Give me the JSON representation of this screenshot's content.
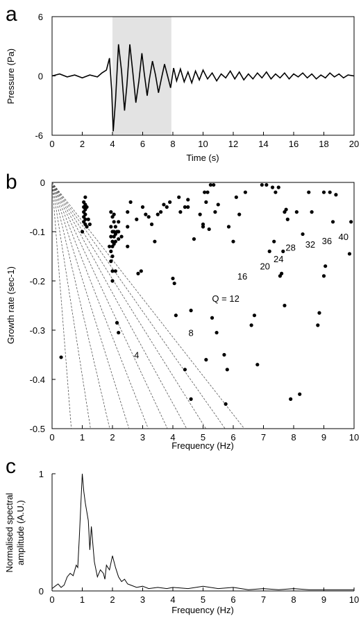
{
  "panels": [
    {
      "letter": "a",
      "xlabel": "Time (s)",
      "ylabel": "Pressure (Pa)",
      "xticks": [
        "0",
        "2",
        "4",
        "6",
        "8",
        "10",
        "12",
        "14",
        "16",
        "18",
        "20"
      ],
      "yticks": [
        {
          "v": 6,
          "label": "6"
        },
        {
          "v": 0,
          "label": "0"
        },
        {
          "v": -6,
          "label": "-6"
        }
      ]
    },
    {
      "letter": "b",
      "xlabel": "Frequency (Hz)",
      "ylabel": "Growth rate (sec-1)",
      "xticks": [
        "0",
        "1",
        "2",
        "3",
        "4",
        "5",
        "6",
        "7",
        "8",
        "9",
        "10"
      ],
      "yticks": [
        {
          "v": 0,
          "label": "0"
        },
        {
          "v": -0.1,
          "label": "-0.1"
        },
        {
          "v": -0.2,
          "label": "-0.2"
        },
        {
          "v": -0.3,
          "label": "-0.3"
        },
        {
          "v": -0.4,
          "label": "-0.4"
        },
        {
          "v": -0.5,
          "label": "-0.5"
        }
      ]
    },
    {
      "letter": "c",
      "xlabel": "Frequency (Hz)",
      "ylabel_line1": "Normalised spectral",
      "ylabel_line2": "amplitude (A.U.)",
      "xticks": [
        "0",
        "1",
        "2",
        "3",
        "4",
        "5",
        "6",
        "7",
        "8",
        "9",
        "10"
      ],
      "yticks": [
        {
          "v": 1,
          "label": "1"
        },
        {
          "v": 0,
          "label": "0"
        }
      ]
    }
  ],
  "chart_data": [
    {
      "type": "line",
      "panel": "a",
      "xlim": [
        0,
        20
      ],
      "ylim": [
        -6,
        6
      ],
      "shaded_interval": [
        4,
        7.9
      ],
      "x": [
        0,
        0.5,
        1,
        1.5,
        2,
        2.5,
        3,
        3.3,
        3.6,
        3.8,
        3.95,
        4.05,
        4.2,
        4.4,
        4.6,
        4.8,
        4.95,
        5.15,
        5.35,
        5.55,
        5.75,
        5.95,
        6.1,
        6.3,
        6.45,
        6.65,
        6.85,
        7.05,
        7.25,
        7.45,
        7.65,
        7.85,
        8.05,
        8.25,
        8.5,
        8.75,
        9,
        9.25,
        9.5,
        9.75,
        10,
        10.3,
        10.6,
        10.9,
        11.2,
        11.5,
        11.8,
        12.1,
        12.4,
        12.7,
        13,
        13.3,
        13.6,
        13.9,
        14.2,
        14.5,
        14.8,
        15.1,
        15.4,
        15.7,
        16,
        16.3,
        16.6,
        16.9,
        17.2,
        17.5,
        17.8,
        18.1,
        18.4,
        18.7,
        19,
        19.3,
        19.6,
        20
      ],
      "y": [
        0,
        0.2,
        -0.1,
        0.1,
        -0.2,
        0.1,
        -0.1,
        0.3,
        0.6,
        1.8,
        -1.5,
        -5.6,
        -2.5,
        3.2,
        0.5,
        -3.5,
        -1.0,
        3.2,
        0.3,
        -2.7,
        -0.5,
        2.3,
        0.3,
        -2.0,
        -0.3,
        1.5,
        0.1,
        -1.7,
        -0.2,
        1.2,
        0.0,
        -1.2,
        0.8,
        -0.5,
        0.7,
        -0.6,
        0.4,
        -0.7,
        0.5,
        -0.4,
        0.6,
        -0.3,
        0.3,
        -0.5,
        0.2,
        -0.2,
        0.5,
        -0.3,
        0.4,
        -0.4,
        0.2,
        -0.3,
        0.3,
        -0.2,
        0.4,
        -0.3,
        0.2,
        -0.2,
        0.3,
        -0.3,
        0.2,
        -0.1,
        0.3,
        -0.2,
        0.2,
        -0.3,
        0.1,
        -0.2,
        0.3,
        -0.1,
        0.2,
        -0.2,
        0.1,
        0.0
      ]
    },
    {
      "type": "scatter",
      "panel": "b",
      "xlim": [
        0,
        10
      ],
      "ylim": [
        -0.5,
        0
      ],
      "q_lines": [
        {
          "q": 4,
          "label": "4",
          "label_at": [
            2.8,
            -0.35
          ]
        },
        {
          "q": 8,
          "label": "8",
          "label_at": [
            4.6,
            -0.305
          ]
        },
        {
          "q": 12,
          "label": "Q = 12",
          "label_at": [
            5.75,
            -0.235
          ]
        },
        {
          "q": 16,
          "label": "16",
          "label_at": [
            6.3,
            -0.19
          ]
        },
        {
          "q": 20,
          "label": "20",
          "label_at": [
            7.05,
            -0.17
          ]
        },
        {
          "q": 24,
          "label": "24",
          "label_at": [
            7.5,
            -0.155
          ]
        },
        {
          "q": 28,
          "label": "28",
          "label_at": [
            7.9,
            -0.132
          ]
        },
        {
          "q": 32,
          "label": "32",
          "label_at": [
            8.55,
            -0.125
          ]
        },
        {
          "q": 36,
          "label": "36",
          "label_at": [
            9.1,
            -0.118
          ]
        },
        {
          "q": 40,
          "label": "40",
          "label_at": [
            9.65,
            -0.11
          ]
        }
      ],
      "points": [
        [
          0.3,
          -0.355
        ],
        [
          1.0,
          -0.1
        ],
        [
          1.05,
          -0.04
        ],
        [
          1.05,
          -0.05
        ],
        [
          1.05,
          -0.06
        ],
        [
          1.05,
          -0.07
        ],
        [
          1.05,
          -0.08
        ],
        [
          1.1,
          -0.03
        ],
        [
          1.1,
          -0.045
        ],
        [
          1.1,
          -0.055
        ],
        [
          1.1,
          -0.065
        ],
        [
          1.1,
          -0.075
        ],
        [
          1.1,
          -0.085
        ],
        [
          1.15,
          -0.09
        ],
        [
          1.15,
          -0.05
        ],
        [
          1.2,
          -0.075
        ],
        [
          1.25,
          -0.085
        ],
        [
          1.9,
          -0.13
        ],
        [
          1.95,
          -0.06
        ],
        [
          1.95,
          -0.09
        ],
        [
          1.95,
          -0.11
        ],
        [
          1.95,
          -0.14
        ],
        [
          1.95,
          -0.16
        ],
        [
          2.0,
          -0.07
        ],
        [
          2.0,
          -0.1
        ],
        [
          2.0,
          -0.12
        ],
        [
          2.0,
          -0.13
        ],
        [
          2.0,
          -0.15
        ],
        [
          2.0,
          -0.18
        ],
        [
          2.0,
          -0.2
        ],
        [
          2.05,
          -0.08
        ],
        [
          2.05,
          -0.1
        ],
        [
          2.05,
          -0.11
        ],
        [
          2.05,
          -0.125
        ],
        [
          2.1,
          -0.09
        ],
        [
          2.1,
          -0.105
        ],
        [
          2.1,
          -0.12
        ],
        [
          2.15,
          -0.1
        ],
        [
          2.2,
          -0.115
        ],
        [
          2.2,
          -0.08
        ],
        [
          2.1,
          -0.18
        ],
        [
          2.2,
          -0.1
        ],
        [
          2.05,
          -0.065
        ],
        [
          2.15,
          -0.285
        ],
        [
          2.2,
          -0.305
        ],
        [
          2.3,
          -0.11
        ],
        [
          2.5,
          -0.13
        ],
        [
          2.5,
          -0.09
        ],
        [
          2.5,
          -0.06
        ],
        [
          2.6,
          -0.04
        ],
        [
          2.8,
          -0.075
        ],
        [
          2.85,
          -0.185
        ],
        [
          2.95,
          -0.18
        ],
        [
          3.0,
          -0.05
        ],
        [
          3.3,
          -0.085
        ],
        [
          3.5,
          -0.065
        ],
        [
          3.1,
          -0.065
        ],
        [
          3.2,
          -0.07
        ],
        [
          3.4,
          -0.12
        ],
        [
          3.6,
          -0.06
        ],
        [
          3.7,
          -0.045
        ],
        [
          3.9,
          -0.04
        ],
        [
          3.8,
          -0.05
        ],
        [
          4.0,
          -0.195
        ],
        [
          4.05,
          -0.205
        ],
        [
          4.2,
          -0.03
        ],
        [
          4.4,
          -0.38
        ],
        [
          4.5,
          -0.035
        ],
        [
          4.6,
          -0.26
        ],
        [
          4.5,
          -0.05
        ],
        [
          4.1,
          -0.27
        ],
        [
          4.4,
          -0.05
        ],
        [
          4.25,
          -0.06
        ],
        [
          4.6,
          -0.44
        ],
        [
          4.7,
          -0.115
        ],
        [
          4.9,
          -0.065
        ],
        [
          5.0,
          -0.085
        ],
        [
          5.0,
          -0.09
        ],
        [
          5.05,
          -0.02
        ],
        [
          5.1,
          -0.04
        ],
        [
          5.15,
          -0.02
        ],
        [
          5.25,
          -0.005
        ],
        [
          5.35,
          -0.005
        ],
        [
          5.45,
          -0.305
        ],
        [
          5.3,
          -0.275
        ],
        [
          5.1,
          -0.36
        ],
        [
          5.2,
          -0.095
        ],
        [
          5.4,
          -0.06
        ],
        [
          5.5,
          -0.045
        ],
        [
          5.7,
          -0.35
        ],
        [
          5.75,
          -0.45
        ],
        [
          5.8,
          -0.38
        ],
        [
          5.85,
          -0.09
        ],
        [
          6.0,
          -0.12
        ],
        [
          6.1,
          -0.03
        ],
        [
          6.2,
          -0.065
        ],
        [
          6.4,
          -0.02
        ],
        [
          6.7,
          -0.27
        ],
        [
          6.8,
          -0.37
        ],
        [
          6.6,
          -0.29
        ],
        [
          6.95,
          -0.005
        ],
        [
          7.1,
          -0.005
        ],
        [
          7.2,
          -0.14
        ],
        [
          7.3,
          -0.01
        ],
        [
          7.35,
          -0.12
        ],
        [
          7.4,
          -0.02
        ],
        [
          7.5,
          -0.01
        ],
        [
          7.55,
          -0.19
        ],
        [
          7.6,
          -0.185
        ],
        [
          7.65,
          -0.14
        ],
        [
          7.7,
          -0.25
        ],
        [
          7.75,
          -0.055
        ],
        [
          7.8,
          -0.075
        ],
        [
          7.7,
          -0.06
        ],
        [
          7.9,
          -0.44
        ],
        [
          8.1,
          -0.06
        ],
        [
          8.2,
          -0.43
        ],
        [
          8.3,
          -0.105
        ],
        [
          8.5,
          -0.02
        ],
        [
          8.6,
          -0.06
        ],
        [
          8.8,
          -0.29
        ],
        [
          8.85,
          -0.265
        ],
        [
          9.0,
          -0.19
        ],
        [
          9.05,
          -0.17
        ],
        [
          9.0,
          -0.02
        ],
        [
          9.2,
          -0.02
        ],
        [
          9.3,
          -0.08
        ],
        [
          9.4,
          -0.025
        ],
        [
          9.85,
          -0.145
        ],
        [
          9.9,
          -0.08
        ]
      ]
    },
    {
      "type": "line",
      "panel": "c",
      "xlim": [
        0,
        10
      ],
      "ylim": [
        0,
        1
      ],
      "x": [
        0,
        0.1,
        0.2,
        0.3,
        0.4,
        0.5,
        0.6,
        0.7,
        0.8,
        0.85,
        0.9,
        1.0,
        1.05,
        1.1,
        1.2,
        1.25,
        1.3,
        1.4,
        1.5,
        1.6,
        1.7,
        1.75,
        1.8,
        1.9,
        2.0,
        2.1,
        2.2,
        2.3,
        2.4,
        2.5,
        2.6,
        2.8,
        3.0,
        3.2,
        3.5,
        3.8,
        4.0,
        4.5,
        5.0,
        5.5,
        6.0,
        6.5,
        7.0,
        7.5,
        8.0,
        8.5,
        9.0,
        9.5,
        10.0
      ],
      "y": [
        0.02,
        0.04,
        0.06,
        0.03,
        0.05,
        0.12,
        0.15,
        0.13,
        0.22,
        0.2,
        0.45,
        1.0,
        0.85,
        0.75,
        0.6,
        0.35,
        0.55,
        0.25,
        0.12,
        0.18,
        0.15,
        0.1,
        0.22,
        0.18,
        0.3,
        0.2,
        0.12,
        0.08,
        0.1,
        0.06,
        0.05,
        0.03,
        0.04,
        0.02,
        0.03,
        0.02,
        0.03,
        0.02,
        0.04,
        0.02,
        0.03,
        0.01,
        0.02,
        0.01,
        0.02,
        0.01,
        0.01,
        0.01,
        0.01
      ]
    }
  ]
}
